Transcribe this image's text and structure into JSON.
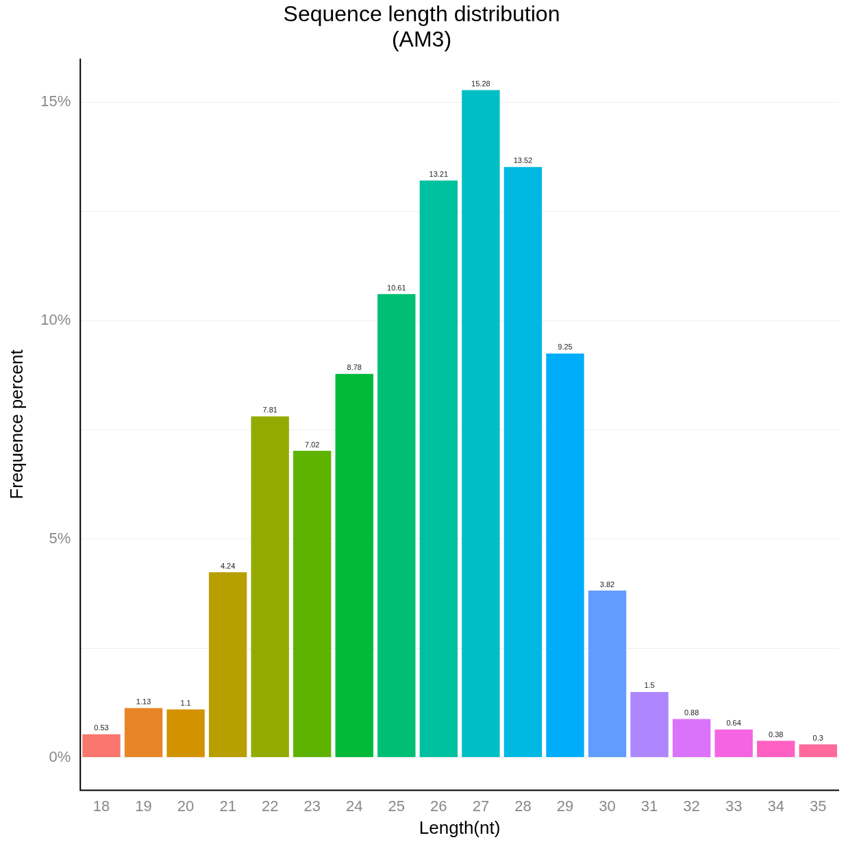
{
  "chart_data": {
    "type": "bar",
    "title": "Sequence length distribution",
    "subtitle": "(AM3)",
    "xlabel": "Length(nt)",
    "ylabel": "Frequence percent",
    "categories": [
      "18",
      "19",
      "20",
      "21",
      "22",
      "23",
      "24",
      "25",
      "26",
      "27",
      "28",
      "29",
      "30",
      "31",
      "32",
      "33",
      "34",
      "35"
    ],
    "values": [
      0.53,
      1.13,
      1.1,
      4.24,
      7.81,
      7.02,
      8.78,
      10.61,
      13.21,
      15.28,
      13.52,
      9.25,
      3.82,
      1.5,
      0.88,
      0.64,
      0.38,
      0.3
    ],
    "colors": [
      "#f8766d",
      "#e88526",
      "#d39200",
      "#b79f00",
      "#93aa00",
      "#5eb300",
      "#00ba38",
      "#00bf74",
      "#00c19f",
      "#00bfc4",
      "#00b9e3",
      "#00adfa",
      "#619cff",
      "#ae87ff",
      "#db72fb",
      "#f564e3",
      "#ff61c3",
      "#ff699c"
    ],
    "ylim": [
      -0.75,
      16
    ],
    "yticks": [
      {
        "value": 0,
        "label": "0%"
      },
      {
        "value": 2.5,
        "label": null
      },
      {
        "value": 5,
        "label": "5%"
      },
      {
        "value": 7.5,
        "label": null
      },
      {
        "value": 10,
        "label": "10%"
      },
      {
        "value": 12.5,
        "label": null
      },
      {
        "value": 15,
        "label": "15%"
      }
    ],
    "grid": "y",
    "legend": false,
    "data_labels": true
  }
}
